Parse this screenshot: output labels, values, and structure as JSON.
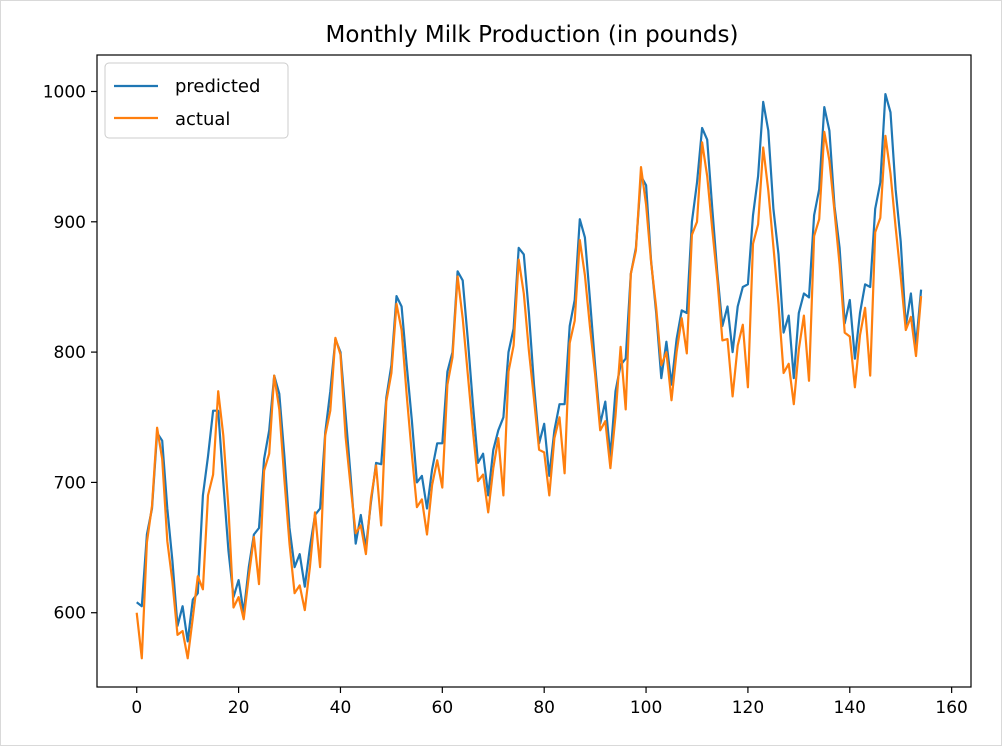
{
  "chart_data": {
    "type": "line",
    "title": "Monthly Milk Production (in pounds)",
    "xlabel": "",
    "ylabel": "",
    "xlim": [
      -7.8,
      163.8
    ],
    "ylim": [
      543,
      1028
    ],
    "xticks": [
      0,
      20,
      40,
      60,
      80,
      100,
      120,
      140,
      160
    ],
    "yticks": [
      600,
      700,
      800,
      900,
      1000
    ],
    "grid": false,
    "legend_position": "top-left",
    "series": [
      {
        "name": "predicted",
        "color": "#1f77b4",
        "values": [
          608,
          605,
          660,
          680,
          738,
          732,
          680,
          640,
          590,
          605,
          578,
          610,
          615,
          690,
          720,
          755,
          755,
          700,
          648,
          612,
          625,
          600,
          635,
          660,
          665,
          718,
          740,
          782,
          768,
          720,
          665,
          635,
          645,
          620,
          650,
          675,
          680,
          738,
          770,
          810,
          800,
          752,
          705,
          653,
          675,
          650,
          685,
          715,
          714,
          765,
          790,
          843,
          835,
          790,
          748,
          700,
          705,
          680,
          710,
          730,
          730,
          785,
          800,
          862,
          855,
          810,
          760,
          715,
          722,
          690,
          725,
          740,
          750,
          800,
          818,
          880,
          875,
          830,
          775,
          730,
          745,
          705,
          740,
          760,
          760,
          820,
          840,
          902,
          888,
          840,
          790,
          745,
          762,
          720,
          770,
          790,
          795,
          860,
          880,
          935,
          928,
          870,
          830,
          780,
          808,
          775,
          810,
          832,
          830,
          900,
          930,
          972,
          963,
          910,
          860,
          820,
          835,
          800,
          835,
          850,
          852,
          905,
          935,
          992,
          970,
          910,
          875,
          815,
          828,
          780,
          830,
          845,
          842,
          905,
          925,
          988,
          970,
          912,
          880,
          822,
          840,
          795,
          830,
          852,
          850,
          910,
          930,
          998,
          984,
          925,
          885,
          820,
          845,
          805,
          848
        ]
      },
      {
        "name": "actual",
        "color": "#ff7f0e",
        "values": [
          600,
          565,
          654,
          682,
          742,
          718,
          655,
          624,
          583,
          586,
          565,
          596,
          628,
          618,
          690,
          706,
          770,
          736,
          681,
          604,
          612,
          595,
          628,
          658,
          622,
          709,
          722,
          782,
          756,
          702,
          653,
          615,
          621,
          602,
          635,
          677,
          635,
          736,
          755,
          811,
          798,
          735,
          697,
          661,
          667,
          645,
          688,
          713,
          667,
          762,
          784,
          837,
          817,
          767,
          722,
          681,
          687,
          660,
          698,
          717,
          696,
          775,
          796,
          858,
          826,
          783,
          740,
          701,
          706,
          677,
          711,
          734,
          690,
          785,
          805,
          871,
          845,
          801,
          764,
          725,
          723,
          690,
          734,
          750,
          707,
          807,
          824,
          886,
          859,
          819,
          783,
          740,
          747,
          711,
          751,
          804,
          756,
          860,
          878,
          942,
          913,
          869,
          834,
          790,
          800,
          763,
          800,
          826,
          799,
          890,
          900,
          961,
          935,
          894,
          855,
          809,
          810,
          766,
          805,
          821,
          773,
          883,
          898,
          957,
          924,
          881,
          837,
          784,
          791,
          760,
          802,
          828,
          778,
          889,
          902,
          969,
          947,
          908,
          867,
          815,
          812,
          773,
          813,
          834,
          782,
          892,
          903,
          966,
          937,
          896,
          858,
          817,
          827,
          797,
          843
        ]
      }
    ]
  }
}
